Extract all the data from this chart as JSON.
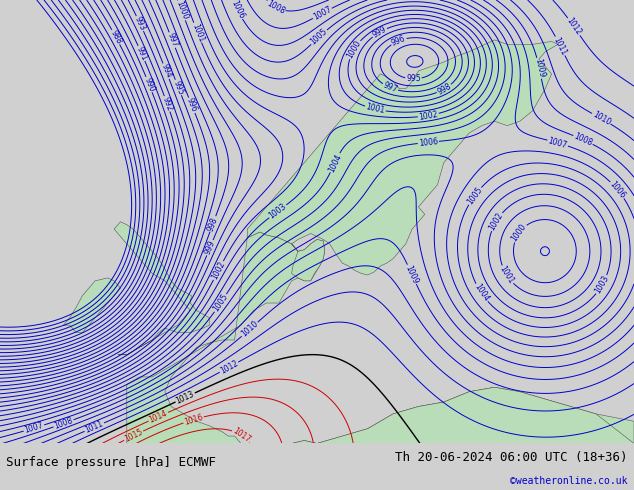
{
  "title_left": "Surface pressure [hPa] ECMWF",
  "title_right": "Th 20-06-2024 06:00 UTC (18+36)",
  "copyright": "©weatheronline.co.uk",
  "fig_width": 6.34,
  "fig_height": 4.9,
  "dpi": 100,
  "bg_color": "#d8d8d8",
  "land_color": "#b8ddb8",
  "border_color": "#555555",
  "sea_color": "#d0d0d0",
  "blue_isobar_color": "#0000cc",
  "red_isobar_color": "#cc0000",
  "black_isobar_color": "#000000",
  "bottom_bar_color": "#e8e8e8",
  "title_fontsize": 9,
  "copyright_color": "#0000cc"
}
